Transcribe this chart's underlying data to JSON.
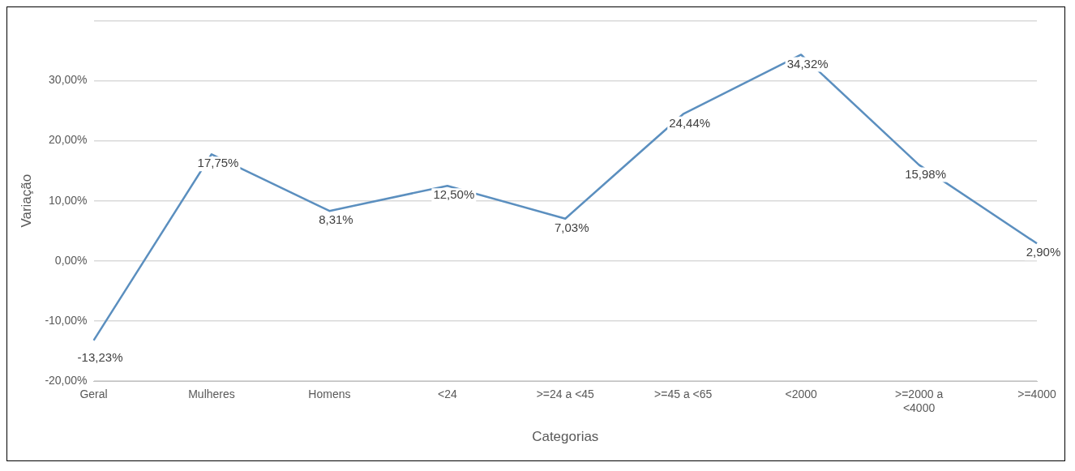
{
  "chart_data": {
    "type": "line",
    "xlabel": "Categorias",
    "ylabel": "Variação",
    "categories": [
      "Geral",
      "Mulheres",
      "Homens",
      "<24",
      ">=24 a <45",
      ">=45 a <65",
      "<2000",
      ">=2000 a <4000",
      ">=4000"
    ],
    "series": [
      {
        "color": "#5b8fbf",
        "values": [
          -13.23,
          17.75,
          8.31,
          12.5,
          7.03,
          24.44,
          34.32,
          15.98,
          2.9
        ],
        "value_labels": [
          "-13,23%",
          "17,75%",
          "8,31%",
          "12,50%",
          "7,03%",
          "24,44%",
          "34,32%",
          "15,98%",
          "2,90%"
        ]
      }
    ],
    "ylim": [
      -20,
      40
    ],
    "yticks": [
      {
        "value": -20,
        "label": "-20,00%"
      },
      {
        "value": -10,
        "label": "-10,00%"
      },
      {
        "value": 0,
        "label": "0,00%"
      },
      {
        "value": 10,
        "label": "10,00%"
      },
      {
        "value": 20,
        "label": "20,00%"
      },
      {
        "value": 30,
        "label": "30,00%"
      },
      {
        "value": 40,
        "label": null
      }
    ],
    "grid": "y",
    "legend": false,
    "marker": "none",
    "line_style": "solid"
  }
}
